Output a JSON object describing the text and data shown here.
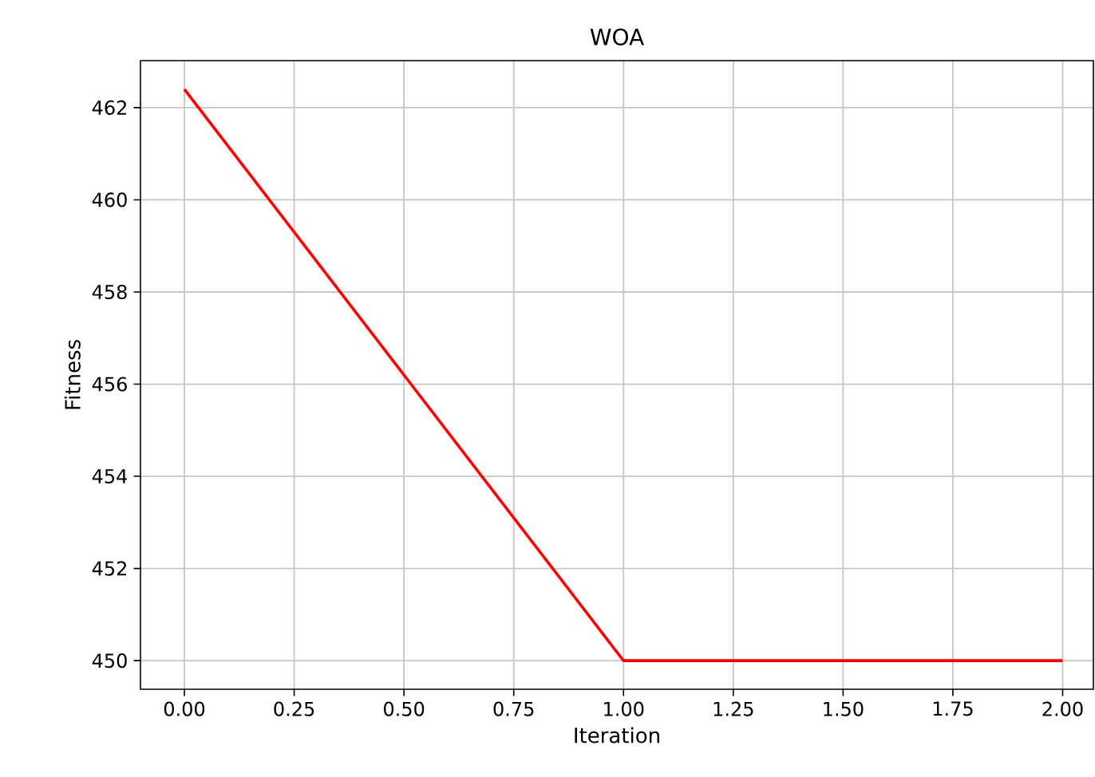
{
  "chart_data": {
    "type": "line",
    "title": "WOA",
    "xlabel": "Iteration",
    "ylabel": "Fitness",
    "x": [
      0,
      1,
      2
    ],
    "series": [
      {
        "color": "#ff0000",
        "values": [
          462.4,
          450.0,
          450.0
        ]
      }
    ],
    "xlim": [
      -0.1,
      2.07
    ],
    "ylim": [
      449.38,
      463.02
    ],
    "xticks": [
      {
        "value": 0,
        "label": "0.00"
      },
      {
        "value": 0.25,
        "label": "0.25"
      },
      {
        "value": 0.5,
        "label": "0.50"
      },
      {
        "value": 0.75,
        "label": "0.75"
      },
      {
        "value": 1,
        "label": "1.00"
      },
      {
        "value": 1.25,
        "label": "1.25"
      },
      {
        "value": 1.5,
        "label": "1.50"
      },
      {
        "value": 1.75,
        "label": "1.75"
      },
      {
        "value": 2,
        "label": "2.00"
      }
    ],
    "yticks": [
      450,
      452,
      454,
      456,
      458,
      460,
      462
    ],
    "grid": true,
    "marker": "none",
    "line_style": "solid"
  }
}
